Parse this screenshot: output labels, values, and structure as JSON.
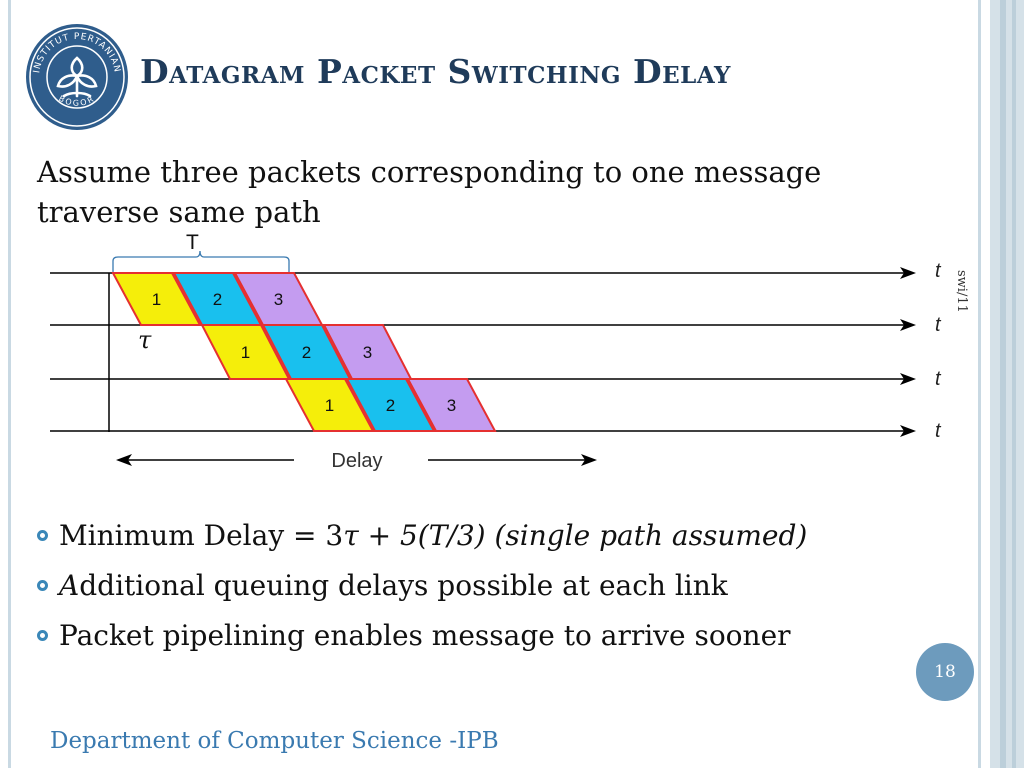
{
  "slide": {
    "title": "Datagram Packet Switching Delay",
    "intro": "Assume three packets corresponding to one message traverse same path",
    "bullets": [
      {
        "plain": "Minimum Delay = 3",
        "italic_tau": "τ",
        "plus": " + ",
        "italic_rest": "5(T/3) (single path assumed)"
      },
      {
        "italic_first": "A",
        "rest": "dditional queuing delays possible at each link"
      },
      {
        "text": "Packet pipelining enables message to arrive sooner"
      }
    ],
    "page_number": "18",
    "footer": "Department of Computer Science -IPB",
    "side_note": "swi/11"
  },
  "logo": {
    "ring_text_top": "INSTITUT PERTANIAN",
    "ring_text_bottom": "BOGOR",
    "color": "#2f5d8c"
  },
  "diagram": {
    "links": 4,
    "time_label": "t",
    "T_label": "T",
    "tau_label": "τ",
    "delay_label": "Delay",
    "colors": {
      "packet1": "#f5ee0a",
      "packet2": "#19c0ee",
      "packet3": "#c49cf0",
      "border": "#e53030"
    },
    "packets": [
      {
        "link": 1,
        "labels": [
          "1",
          "2",
          "3"
        ]
      },
      {
        "link": 2,
        "labels": [
          "1",
          "2",
          "3"
        ]
      },
      {
        "link": 3,
        "labels": [
          "1",
          "2",
          "3"
        ]
      }
    ]
  }
}
